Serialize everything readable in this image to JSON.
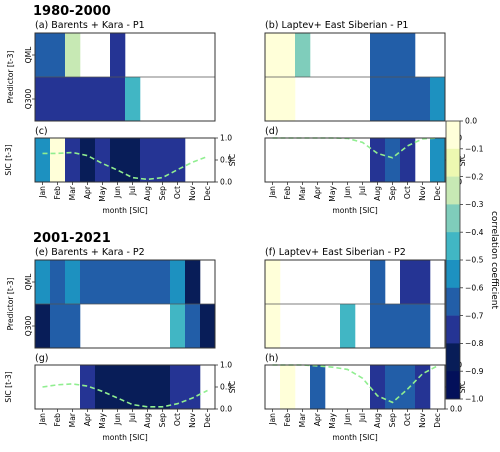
{
  "colors": {
    "scale": [
      "#ffffd9",
      "#edf8b1",
      "#c7e9b4",
      "#7fcdbb",
      "#41b6c4",
      "#1d91c0",
      "#225ea8",
      "#253494",
      "#081d58",
      "#03105a"
    ],
    "sic_line": "#90ee90",
    "frame": "#333333"
  },
  "chart_data": {
    "type": "heatmap",
    "months": [
      "Jan",
      "Feb",
      "Mar",
      "Apr",
      "May",
      "Jun",
      "Jul",
      "Aug",
      "Sep",
      "Oct",
      "Nov",
      "Dec"
    ],
    "predictors": [
      "QML",
      "Q300"
    ],
    "predictor_axis_label": "Predictor [t-3]",
    "sic_axis_label": "SIC [t-3]",
    "sic_tick_title": "SIC",
    "month_axis_label": "month [SIC]",
    "sic_ylim": [
      0,
      1
    ],
    "sic_ticks": [
      "0.0",
      "0.5",
      "1.0"
    ],
    "colorbar": {
      "label": "correlation coefficient",
      "range": [
        -1.0,
        0.0
      ],
      "ticks": [
        "0.0",
        "−0.1",
        "−0.2",
        "−0.3",
        "−0.4",
        "−0.5",
        "−0.6",
        "−0.7",
        "−0.8",
        "−0.9",
        "−1.0"
      ]
    },
    "periods": [
      {
        "title": "1980-2000",
        "panels": [
          {
            "heat_title": "(a) Barents + Kara - P1",
            "sic_title": "(c)",
            "qml": [
              -0.6,
              -0.6,
              -0.25,
              null,
              null,
              -0.75,
              null,
              null,
              null,
              null,
              null,
              null
            ],
            "q300": [
              -0.7,
              -0.7,
              -0.7,
              -0.7,
              -0.7,
              -0.7,
              -0.45,
              null,
              null,
              null,
              null,
              null
            ],
            "sic_corr": [
              -0.5,
              -0.05,
              -0.7,
              -0.8,
              -0.7,
              -0.85,
              -0.85,
              -0.7,
              -0.75,
              -0.75,
              null,
              null
            ],
            "sic_clim": [
              0.65,
              0.65,
              0.67,
              0.6,
              0.42,
              0.27,
              0.1,
              0.06,
              0.1,
              0.28,
              0.45,
              0.58
            ]
          },
          {
            "heat_title": "(b) Laptev+ East Siberian - P1",
            "sic_title": "(d)",
            "qml": [
              -0.05,
              -0.05,
              -0.35,
              null,
              null,
              null,
              null,
              -0.65,
              -0.65,
              -0.65,
              null,
              null
            ],
            "q300": [
              -0.05,
              -0.05,
              null,
              null,
              null,
              null,
              null,
              -0.65,
              -0.65,
              -0.6,
              -0.6,
              -0.5
            ],
            "sic_corr": [
              null,
              null,
              null,
              null,
              null,
              null,
              null,
              -0.75,
              -0.6,
              -0.7,
              null,
              -0.5
            ],
            "sic_clim": [
              1.0,
              1.0,
              1.0,
              1.0,
              1.0,
              0.99,
              0.9,
              0.65,
              0.55,
              0.82,
              0.98,
              1.0
            ]
          }
        ]
      },
      {
        "title": "2001-2021",
        "panels": [
          {
            "heat_title": "(e) Barents + Kara - P2",
            "sic_title": "(g)",
            "qml": [
              -0.5,
              -0.6,
              -0.5,
              -0.6,
              -0.6,
              -0.65,
              -0.65,
              -0.65,
              -0.6,
              -0.5,
              -0.8,
              null
            ],
            "q300": [
              -0.85,
              -0.65,
              -0.65,
              null,
              null,
              null,
              null,
              null,
              null,
              -0.45,
              -0.65,
              -0.8
            ],
            "sic_corr": [
              null,
              null,
              null,
              -0.75,
              -0.8,
              -0.8,
              -0.8,
              -0.8,
              -0.8,
              -0.75,
              -0.7,
              null
            ],
            "sic_clim": [
              0.5,
              0.55,
              0.57,
              0.52,
              0.4,
              0.25,
              0.1,
              0.05,
              0.05,
              0.12,
              0.25,
              0.42
            ]
          },
          {
            "heat_title": "(f) Laptev+ East Siberian - P2",
            "sic_title": "(h)",
            "qml": [
              -0.05,
              null,
              null,
              null,
              null,
              null,
              null,
              -0.65,
              null,
              -0.7,
              -0.7,
              null
            ],
            "q300": [
              -0.05,
              null,
              null,
              null,
              null,
              -0.45,
              null,
              -0.65,
              -0.65,
              -0.65,
              -0.65,
              null
            ],
            "sic_corr": [
              null,
              -0.05,
              null,
              -0.6,
              null,
              null,
              null,
              -0.7,
              -0.65,
              -0.65,
              -0.7,
              null
            ],
            "sic_clim": [
              1.0,
              1.0,
              1.0,
              0.98,
              0.95,
              0.9,
              0.7,
              0.3,
              0.15,
              0.45,
              0.8,
              0.98
            ]
          }
        ]
      }
    ]
  }
}
